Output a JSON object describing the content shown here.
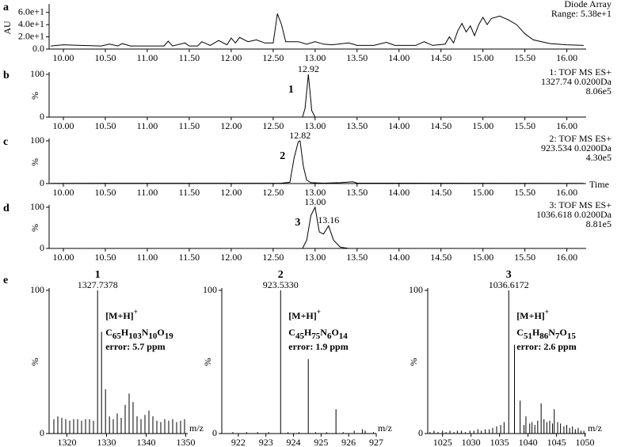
{
  "chart_data": [
    {
      "type": "line",
      "panel": "a",
      "y_label": "AU",
      "info": [
        "Diode Array",
        "Range: 5.38e+1"
      ],
      "color": "#000000",
      "x": [
        9.85,
        10.0,
        10.2,
        10.45,
        10.55,
        10.65,
        10.7,
        10.8,
        11.0,
        11.2,
        11.25,
        11.3,
        11.45,
        11.5,
        11.6,
        11.65,
        11.75,
        11.85,
        11.95,
        12.0,
        12.05,
        12.1,
        12.2,
        12.3,
        12.4,
        12.5,
        12.55,
        12.6,
        12.65,
        12.8,
        12.9,
        13.0,
        13.1,
        13.2,
        13.4,
        13.5,
        13.7,
        13.85,
        13.95,
        14.2,
        14.3,
        14.4,
        14.55,
        14.6,
        14.65,
        14.7,
        14.75,
        14.8,
        14.85,
        14.9,
        14.95,
        15.0,
        15.05,
        15.1,
        15.2,
        15.3,
        15.4,
        15.5,
        15.6,
        15.8,
        16.0,
        16.2
      ],
      "values": [
        5,
        7,
        6,
        5,
        8,
        5,
        9,
        5,
        5,
        5,
        13,
        5,
        10,
        5,
        5,
        12,
        6,
        14,
        7,
        18,
        10,
        19,
        12,
        15,
        10,
        10,
        58,
        40,
        12,
        12,
        8,
        12,
        8,
        7,
        10,
        6,
        6,
        11,
        6,
        6,
        12,
        6,
        8,
        20,
        10,
        30,
        42,
        28,
        38,
        22,
        40,
        52,
        40,
        50,
        54,
        48,
        40,
        25,
        15,
        9,
        7,
        6
      ],
      "xlim": [
        9.83,
        16.23
      ],
      "ylim": [
        0,
        70
      ],
      "yticks": [
        {
          "value": 0,
          "label": "0.0"
        },
        {
          "value": 20,
          "label": "2.0e+1"
        },
        {
          "value": 40,
          "label": "4.0e+1"
        },
        {
          "value": 60,
          "label": "6.0e+1"
        }
      ],
      "xticks": [
        {
          "value": 10,
          "label": "10.00"
        },
        {
          "value": 10.5,
          "label": "10.50"
        },
        {
          "value": 11,
          "label": "11.00"
        },
        {
          "value": 11.5,
          "label": "11.50"
        },
        {
          "value": 12,
          "label": "12.00"
        },
        {
          "value": 12.5,
          "label": "12.50"
        },
        {
          "value": 13,
          "label": "13.00"
        },
        {
          "value": 13.5,
          "label": "13.50"
        },
        {
          "value": 14,
          "label": "14.00"
        },
        {
          "value": 14.5,
          "label": "14.50"
        },
        {
          "value": 15,
          "label": "15.00"
        },
        {
          "value": 15.5,
          "label": "15.50"
        },
        {
          "value": 16,
          "label": "16.00"
        }
      ]
    },
    {
      "type": "line",
      "panel": "b",
      "y_label": "%",
      "compound": "1",
      "info": [
        "1: TOF MS ES+",
        "1327.74 0.0200Da",
        "8.06e5"
      ],
      "color": "#000000",
      "x": [
        9.85,
        12.85,
        12.88,
        12.92,
        12.96,
        13.0,
        16.2
      ],
      "values": [
        0,
        0,
        20,
        100,
        15,
        0,
        0
      ],
      "peaks": [
        {
          "value": 12.92,
          "label": "12.92"
        }
      ],
      "xlim": [
        9.83,
        16.23
      ],
      "ylim": [
        0,
        100
      ],
      "yticks": [
        0,
        100
      ],
      "xticks": [
        {
          "value": 10,
          "label": "10.00"
        },
        {
          "value": 10.5,
          "label": "10.50"
        },
        {
          "value": 11,
          "label": "11.00"
        },
        {
          "value": 11.5,
          "label": "11.50"
        },
        {
          "value": 12,
          "label": "12.00"
        },
        {
          "value": 12.5,
          "label": "12.50"
        },
        {
          "value": 13,
          "label": "13.00"
        },
        {
          "value": 13.5,
          "label": "13.50"
        },
        {
          "value": 14,
          "label": "14.00"
        },
        {
          "value": 14.5,
          "label": "14.50"
        },
        {
          "value": 15,
          "label": "15.00"
        },
        {
          "value": 15.5,
          "label": "15.50"
        },
        {
          "value": 16,
          "label": "16.00"
        }
      ]
    },
    {
      "type": "line",
      "panel": "c",
      "y_label": "%",
      "x_label": "Time",
      "compound": "2",
      "info": [
        "2: TOF MS ES+",
        "923.534 0.0200Da",
        "4.30e5"
      ],
      "color": "#000000",
      "x": [
        9.85,
        12.6,
        12.7,
        12.75,
        12.8,
        12.82,
        12.86,
        12.9,
        12.95,
        13.1,
        13.3,
        13.45,
        13.5,
        16.2
      ],
      "values": [
        0.5,
        1,
        3,
        60,
        98,
        100,
        40,
        8,
        2,
        1,
        2,
        4,
        1,
        0.5
      ],
      "peaks": [
        {
          "value": 12.82,
          "label": "12.82"
        }
      ],
      "xlim": [
        9.83,
        16.23
      ],
      "ylim": [
        0,
        100
      ],
      "yticks": [
        0,
        100
      ],
      "xticks": [
        {
          "value": 10,
          "label": "10.00"
        },
        {
          "value": 10.5,
          "label": "10.50"
        },
        {
          "value": 11,
          "label": "11.00"
        },
        {
          "value": 11.5,
          "label": "11.50"
        },
        {
          "value": 12,
          "label": "12.00"
        },
        {
          "value": 12.5,
          "label": "12.50"
        },
        {
          "value": 13,
          "label": "13.00"
        },
        {
          "value": 13.5,
          "label": "13.50"
        },
        {
          "value": 14,
          "label": "14.00"
        },
        {
          "value": 14.5,
          "label": "14.50"
        },
        {
          "value": 15,
          "label": "15.00"
        },
        {
          "value": 15.5,
          "label": "15.50"
        },
        {
          "value": 16,
          "label": "16.00"
        }
      ]
    },
    {
      "type": "line",
      "panel": "d",
      "y_label": "%",
      "compound": "3",
      "info": [
        "3: TOF MS ES+",
        "1036.618 0.0200Da",
        "8.81e5"
      ],
      "color": "#000000",
      "x": [
        9.85,
        12.85,
        12.9,
        12.95,
        13.0,
        13.05,
        13.1,
        13.16,
        13.22,
        13.3,
        13.4,
        16.2
      ],
      "values": [
        0,
        0,
        20,
        80,
        100,
        40,
        35,
        55,
        20,
        3,
        0,
        0
      ],
      "peaks": [
        {
          "value": 13.0,
          "label": "13.00"
        },
        {
          "value": 13.16,
          "label": "13.16"
        }
      ],
      "xlim": [
        9.83,
        16.23
      ],
      "ylim": [
        0,
        100
      ],
      "yticks": [
        0,
        100
      ],
      "xticks": [
        {
          "value": 10,
          "label": "10.00"
        },
        {
          "value": 10.5,
          "label": "10.50"
        },
        {
          "value": 11,
          "label": "11.00"
        },
        {
          "value": 11.5,
          "label": "11.50"
        },
        {
          "value": 12,
          "label": "12.00"
        },
        {
          "value": 12.5,
          "label": "12.50"
        },
        {
          "value": 13,
          "label": "13.00"
        },
        {
          "value": 13.5,
          "label": "13.50"
        },
        {
          "value": 14,
          "label": "14.00"
        },
        {
          "value": 14.5,
          "label": "14.50"
        },
        {
          "value": 15,
          "label": "15.00"
        },
        {
          "value": 15.5,
          "label": "15.50"
        },
        {
          "value": 16,
          "label": "16.00"
        }
      ]
    },
    {
      "type": "bar",
      "panel": "e",
      "y_label": "%",
      "x_label": "m/z",
      "compound": "1",
      "ion": [
        "[M+H]",
        "+"
      ],
      "formula": [
        "C",
        "65",
        "H",
        "103",
        "N",
        "10",
        "O",
        "19"
      ],
      "error": "error: 5.7 ppm",
      "color": "#000000",
      "x": [
        1316.7,
        1317.7,
        1318.7,
        1319.7,
        1320.7,
        1321.7,
        1322.7,
        1323.7,
        1324.7,
        1325.7,
        1326.7,
        1327.7378,
        1328.74,
        1329.74,
        1330.74,
        1331.7,
        1332.7,
        1333.7,
        1334.7,
        1335.7,
        1336.7,
        1337.7,
        1338.7,
        1339.7,
        1340.7,
        1341.7,
        1342.7,
        1343.7,
        1344.7,
        1345.7,
        1346.7,
        1347.7,
        1348.7,
        1349.7
      ],
      "values": [
        10,
        12,
        11,
        10,
        9,
        10,
        10,
        9,
        10,
        10,
        9,
        100,
        71,
        31,
        12,
        10,
        14,
        11,
        20,
        28,
        22,
        12,
        10,
        13,
        16,
        12,
        9,
        8,
        10,
        9,
        10,
        8,
        9,
        10
      ],
      "peaks": [
        {
          "value": 1327.7378,
          "label": "1327.7378"
        }
      ],
      "xlim": [
        1315.5,
        1350.5
      ],
      "ylim": [
        0,
        100
      ],
      "yticks": [
        0,
        100
      ],
      "xticks": [
        1320,
        1330,
        1340,
        1350
      ]
    },
    {
      "type": "bar",
      "y_label": "%",
      "x_label": "m/z",
      "compound": "2",
      "ion": [
        "[M+H]",
        "+"
      ],
      "formula": [
        "C",
        "45",
        "H",
        "75",
        "N",
        "6",
        "O",
        "14"
      ],
      "error": "error: 1.9 ppm",
      "color": "#000000",
      "x": [
        921.8,
        922.3,
        922.7,
        923.1,
        923.533,
        923.8,
        924.2,
        924.536,
        924.8,
        925.2,
        925.54,
        925.8,
        926.2,
        926.5,
        926.6,
        926.9
      ],
      "values": [
        1,
        1,
        1,
        1,
        100,
        1,
        1,
        52,
        1,
        1,
        17,
        1,
        2,
        3,
        2,
        1
      ],
      "peaks": [
        {
          "value": 923.533,
          "label": "923.5330"
        }
      ],
      "xlim": [
        921.4,
        927.0
      ],
      "ylim": [
        0,
        100
      ],
      "yticks": [
        0,
        100
      ],
      "xticks": [
        922,
        923,
        924,
        925,
        926,
        927
      ]
    },
    {
      "type": "bar",
      "y_label": "%",
      "x_label": "m/z",
      "compound": "3",
      "ion": [
        "[M+H]",
        "+"
      ],
      "formula": [
        "C",
        "51",
        "H",
        "86",
        "N",
        "7",
        "O",
        "15"
      ],
      "error": "error: 2.6 ppm",
      "color": "#000000",
      "x": [
        1022.8,
        1023.5,
        1024.2,
        1025,
        1025.6,
        1026.3,
        1027,
        1027.6,
        1028.3,
        1029,
        1029.8,
        1030.5,
        1031.2,
        1031.8,
        1032.5,
        1033.2,
        1033.8,
        1034.5,
        1035.2,
        1035.8,
        1036.6172,
        1037.62,
        1038.62,
        1039.3,
        1039.63,
        1040.3,
        1040.7,
        1041.2,
        1041.7,
        1042.3,
        1042.8,
        1043.3,
        1043.8,
        1044.3,
        1044.6,
        1045.2,
        1045.7,
        1046.3,
        1046.8,
        1047.3,
        1047.8,
        1048.3,
        1048.8,
        1049.3,
        1049.8
      ],
      "values": [
        1,
        2,
        1,
        2,
        1,
        2,
        1,
        2,
        2,
        1,
        2,
        2,
        3,
        2,
        3,
        3,
        4,
        5,
        6,
        8,
        100,
        62,
        23,
        6,
        12,
        7,
        8,
        6,
        9,
        21,
        10,
        8,
        9,
        7,
        17,
        8,
        7,
        5,
        6,
        4,
        5,
        3,
        4,
        2,
        2
      ],
      "peaks": [
        {
          "value": 1036.6172,
          "label": "1036.6172"
        }
      ],
      "xlim": [
        1022.4,
        1050.2
      ],
      "ylim": [
        0,
        100
      ],
      "yticks": [
        0,
        100
      ],
      "xticks": [
        1025,
        1030,
        1035,
        1040,
        1045,
        1050
      ]
    }
  ]
}
